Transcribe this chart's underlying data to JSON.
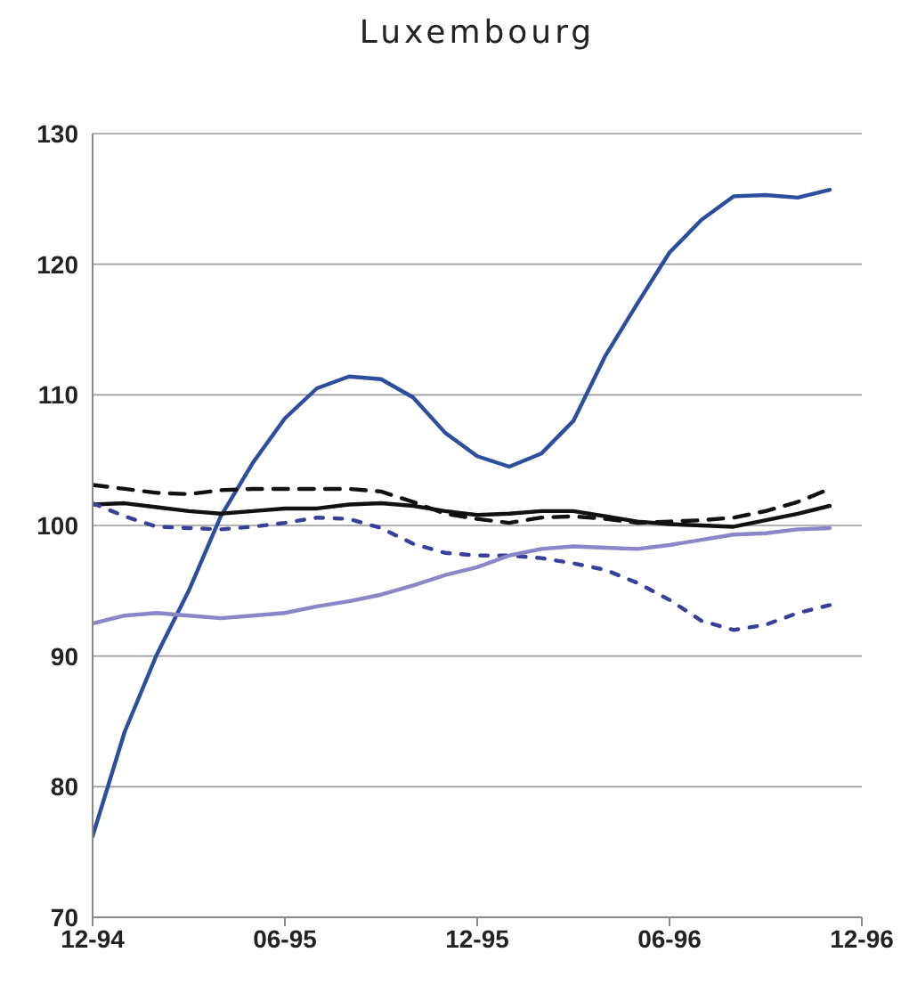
{
  "chart_data": {
    "type": "line",
    "title": "Luxembourg",
    "x": [
      "1994-12",
      "1995-01",
      "1995-02",
      "1995-03",
      "1995-04",
      "1995-05",
      "1995-06",
      "1995-07",
      "1995-08",
      "1995-09",
      "1995-10",
      "1995-11",
      "1995-12",
      "1996-01",
      "1996-02",
      "1996-03",
      "1996-04",
      "1996-05",
      "1996-06",
      "1996-07",
      "1996-08",
      "1996-09",
      "1996-10",
      "1996-11"
    ],
    "series": [
      {
        "color": "#2d4e9e",
        "line_style": "solid",
        "values": [
          76.2,
          84.2,
          90.1,
          95,
          100.7,
          104.8,
          108.2,
          110.5,
          111.4,
          111.2,
          109.8,
          107.1,
          105.3,
          104.5,
          105.5,
          108,
          113,
          117,
          120.9,
          123.4,
          125.2,
          125.3,
          125.1,
          125.7
        ]
      },
      {
        "color": "#111111",
        "line_style": "solid",
        "values": [
          101.6,
          101.7,
          101.4,
          101.1,
          100.9,
          101.1,
          101.3,
          101.3,
          101.6,
          101.7,
          101.5,
          101.1,
          100.8,
          100.9,
          101.1,
          101.1,
          100.7,
          100.3,
          100.1,
          100,
          99.9,
          100.4,
          100.9,
          101.5
        ]
      },
      {
        "color": "#111111",
        "line_style": "dashed",
        "values": [
          103.1,
          102.8,
          102.5,
          102.4,
          102.7,
          102.8,
          102.8,
          102.8,
          102.8,
          102.6,
          101.8,
          100.9,
          100.5,
          100.2,
          100.6,
          100.7,
          100.5,
          100.2,
          100.3,
          100.4,
          100.6,
          101.1,
          101.8,
          102.8
        ]
      },
      {
        "color": "#3a3f9a",
        "line_style": "dotted",
        "values": [
          101.7,
          100.7,
          99.9,
          99.8,
          99.7,
          99.9,
          100.2,
          100.6,
          100.5,
          99.8,
          98.6,
          97.9,
          97.7,
          97.7,
          97.5,
          97.1,
          96.6,
          95.6,
          94.3,
          92.7,
          92,
          92.4,
          93.3,
          93.9
        ]
      },
      {
        "color": "#8a86c8",
        "line_style": "solid",
        "values": [
          92.5,
          93.1,
          93.3,
          93.1,
          92.9,
          93.1,
          93.3,
          93.8,
          94.2,
          94.7,
          95.4,
          96.2,
          96.8,
          97.7,
          98.2,
          98.4,
          98.3,
          98.2,
          98.5,
          98.9,
          99.3,
          99.4,
          99.7,
          99.8
        ]
      }
    ],
    "xlim": [
      "1994-12",
      "1996-12"
    ],
    "xticks": [
      {
        "value": "1994-12",
        "label": "12-94"
      },
      {
        "value": "1995-06",
        "label": "06-95"
      },
      {
        "value": "1995-12",
        "label": "12-95"
      },
      {
        "value": "1996-06",
        "label": "06-96"
      },
      {
        "value": "1996-12",
        "label": "12-96"
      }
    ],
    "ylim": [
      70,
      130
    ],
    "yticks": [
      70,
      80,
      90,
      100,
      110,
      120,
      130
    ],
    "grid": "y",
    "marker": "none"
  }
}
